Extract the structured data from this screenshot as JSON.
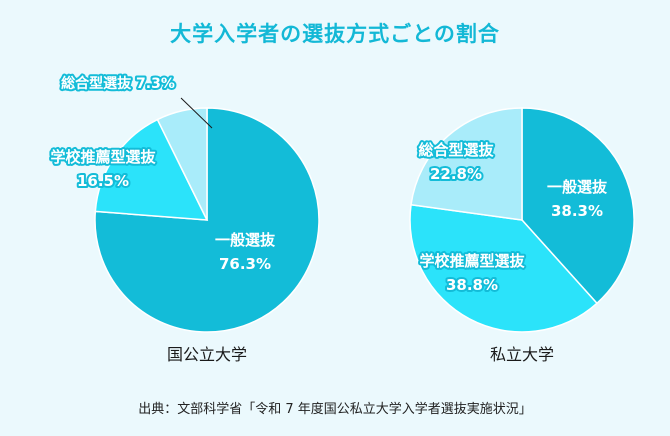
{
  "title": "大学入学者の選抜方式ごとの割合",
  "source": "出典：文部科学省「令和 7 年度国公私立大学入学者選抜実施状況」",
  "colors": {
    "ippan": "#13bcd8",
    "suisen": "#2be3fa",
    "sogo": "#a9ecfa",
    "text_dark": "#1a1a1a",
    "text_white": "#ffffff",
    "title": "#13b8d6",
    "background": "#ebf9fd"
  },
  "chart_data": [
    {
      "type": "pie",
      "caption": "国公立大学",
      "unit": "%",
      "slices": [
        {
          "label": "一般選抜",
          "value": 76.3,
          "color": "#13bcd8"
        },
        {
          "label": "学校推薦型選抜",
          "value": 16.5,
          "color": "#2be3fa"
        },
        {
          "label": "総合型選抜",
          "value": 7.3,
          "color": "#a9ecfa"
        }
      ]
    },
    {
      "type": "pie",
      "caption": "私立大学",
      "unit": "%",
      "slices": [
        {
          "label": "一般選抜",
          "value": 38.3,
          "color": "#13bcd8"
        },
        {
          "label": "学校推薦型選抜",
          "value": 38.8,
          "color": "#2be3fa"
        },
        {
          "label": "総合型選抜",
          "value": 22.8,
          "color": "#a9ecfa"
        }
      ]
    }
  ]
}
